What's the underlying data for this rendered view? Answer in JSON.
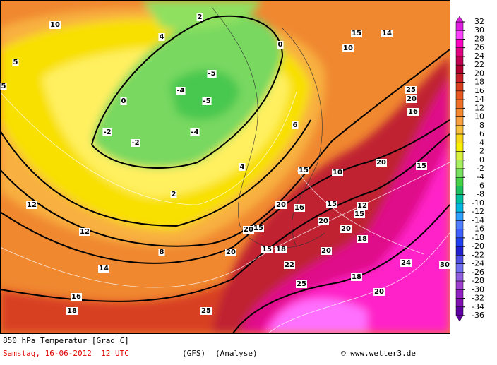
{
  "header": {
    "title": "850 hPa Temperatur [Grad C]",
    "date": "Samstag, 16-06-2012  12 UTC",
    "model": "(GFS)",
    "run": "(Analyse)",
    "credit": "© www.wetter3.de"
  },
  "colorbar": {
    "levels": [
      32,
      30,
      28,
      26,
      24,
      22,
      20,
      18,
      16,
      14,
      12,
      10,
      8,
      6,
      4,
      2,
      0,
      -2,
      -4,
      -6,
      -8,
      -10,
      -12,
      -14,
      -16,
      -18,
      -20,
      -22,
      -24,
      -26,
      -28,
      -30,
      -32,
      -34,
      -36
    ],
    "colors": [
      "#e020e0",
      "#ff40ff",
      "#ff00c0",
      "#e00080",
      "#c00050",
      "#b00030",
      "#c82028",
      "#d84020",
      "#e85820",
      "#f07028",
      "#f88830",
      "#f8a040",
      "#f8c040",
      "#f8d818",
      "#f8f000",
      "#d8f040",
      "#a8f060",
      "#78e060",
      "#48d048",
      "#20c060",
      "#00c0a0",
      "#00b8e0",
      "#30a0ff",
      "#5080ff",
      "#4060ff",
      "#2040f0",
      "#2020d0",
      "#5050e8",
      "#7070f0",
      "#9060e0",
      "#a040d0",
      "#9020c0",
      "#8010b0",
      "#6000a0"
    ]
  },
  "map": {
    "contour_labels": [
      "10",
      "10",
      "5",
      "5",
      "0",
      "-5",
      "-5",
      "-2",
      "-2",
      "-4",
      "-4",
      "0",
      "2",
      "2",
      "4",
      "4",
      "6",
      "8",
      "12",
      "12",
      "14",
      "16",
      "18",
      "15",
      "15",
      "15",
      "15",
      "20",
      "20",
      "20",
      "20",
      "25",
      "25",
      "25",
      "30",
      "16",
      "20",
      "12",
      "10",
      "15",
      "20",
      "15",
      "15",
      "18",
      "18",
      "22",
      "24",
      "20",
      "20",
      "14",
      "16",
      "18",
      "20"
    ]
  }
}
